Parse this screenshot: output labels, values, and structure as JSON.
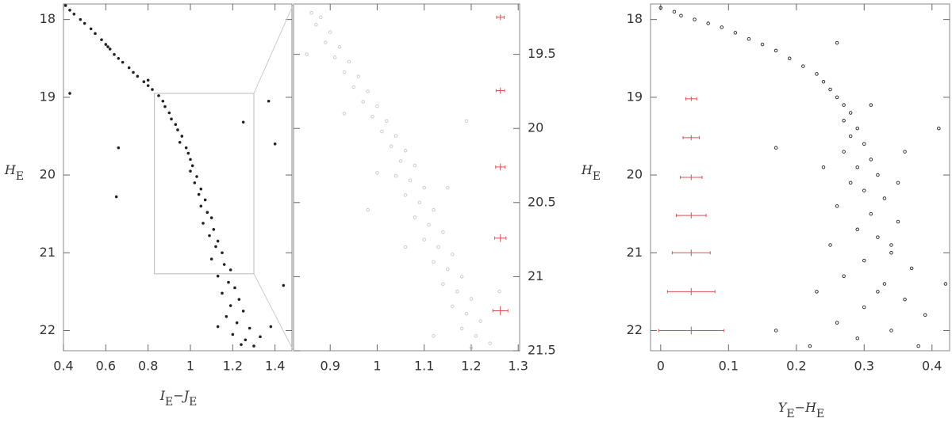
{
  "chart_data": [
    {
      "type": "scatter",
      "color": "#222",
      "marker": "filled",
      "yaxis_side": "left",
      "xlim": [
        0.4,
        1.48
      ],
      "ylim": [
        17.8,
        22.26
      ],
      "log_y": false,
      "y_reversed": true,
      "xticks": [
        0.4,
        0.6,
        0.8,
        1,
        1.2,
        1.4
      ],
      "yticks": [
        18,
        19,
        20,
        21,
        22
      ],
      "xlabel": [
        {
          "text": "I"
        },
        {
          "text": "E",
          "sub": true
        },
        {
          "text": "−J"
        },
        {
          "text": "E",
          "sub": true
        }
      ],
      "ylabel": [
        {
          "text": "H"
        },
        {
          "text": "E",
          "sub": true
        }
      ],
      "inset": {
        "xlim": [
          0.83,
          1.3
        ],
        "ylim": [
          18.95,
          21.27
        ]
      },
      "x": [
        0.41,
        0.43,
        0.45,
        0.48,
        0.5,
        0.53,
        0.55,
        0.58,
        0.6,
        0.62,
        0.64,
        0.66,
        0.68,
        0.71,
        0.73,
        0.75,
        0.78,
        0.8,
        0.82,
        0.85,
        0.87,
        0.88,
        0.9,
        0.91,
        0.93,
        0.94,
        0.96,
        0.95,
        0.98,
        0.99,
        1.0,
        1.01,
        1.0,
        1.03,
        1.02,
        1.05,
        1.04,
        1.07,
        1.05,
        1.08,
        1.1,
        1.06,
        1.11,
        1.09,
        1.13,
        1.12,
        1.15,
        1.1,
        1.16,
        1.19,
        1.13,
        1.18,
        1.21,
        1.15,
        1.23,
        1.19,
        1.25,
        1.17,
        1.22,
        1.28,
        1.2,
        1.26,
        1.3,
        1.24,
        1.33,
        1.38,
        0.43,
        0.66,
        0.65,
        0.8,
        1.4,
        1.25,
        1.44,
        1.13,
        0.61,
        1.37
      ],
      "values": [
        17.82,
        17.88,
        17.93,
        18.0,
        18.05,
        18.12,
        18.18,
        18.26,
        18.32,
        18.38,
        18.45,
        18.5,
        18.55,
        18.62,
        18.68,
        18.73,
        18.8,
        18.85,
        18.9,
        18.98,
        19.05,
        19.12,
        19.2,
        19.28,
        19.35,
        19.42,
        19.5,
        19.58,
        19.65,
        19.72,
        19.8,
        19.88,
        19.95,
        20.02,
        20.1,
        20.18,
        20.25,
        20.32,
        20.4,
        20.48,
        20.55,
        20.62,
        20.7,
        20.78,
        20.85,
        20.92,
        21.0,
        21.08,
        21.15,
        21.22,
        21.3,
        21.38,
        21.45,
        21.52,
        21.6,
        21.68,
        21.75,
        21.82,
        21.9,
        21.97,
        22.05,
        22.12,
        22.2,
        22.18,
        22.08,
        21.95,
        18.95,
        19.65,
        20.28,
        18.78,
        19.6,
        19.32,
        21.42,
        21.95,
        18.35,
        19.05
      ]
    },
    {
      "type": "scatter",
      "color": "#c8c8c8",
      "marker": "open",
      "yaxis_side": "right",
      "xlim": [
        0.822,
        1.303
      ],
      "ylim": [
        19.16,
        21.5
      ],
      "y_reversed": true,
      "xticks": [
        0.9,
        1,
        1.1,
        1.2,
        1.3
      ],
      "yticks": [
        19.5,
        20,
        20.5,
        21,
        21.5
      ],
      "x": [
        0.86,
        0.88,
        0.87,
        0.9,
        0.89,
        0.92,
        0.91,
        0.94,
        0.93,
        0.96,
        0.95,
        0.98,
        0.97,
        1.0,
        0.99,
        1.02,
        1.01,
        1.04,
        1.03,
        1.06,
        1.05,
        1.08,
        1.04,
        1.07,
        1.1,
        1.06,
        1.09,
        1.12,
        1.08,
        1.11,
        1.14,
        1.1,
        1.13,
        1.16,
        1.12,
        1.15,
        1.18,
        1.14,
        1.17,
        1.2,
        1.16,
        1.19,
        1.22,
        1.18,
        1.21,
        1.24,
        1.2,
        0.85,
        0.93,
        1.0,
        1.06,
        1.26,
        1.15,
        1.19,
        0.98,
        1.12
      ],
      "values": [
        19.22,
        19.25,
        19.3,
        19.35,
        19.42,
        19.45,
        19.52,
        19.55,
        19.62,
        19.65,
        19.72,
        19.75,
        19.82,
        19.85,
        19.92,
        19.95,
        20.02,
        20.05,
        20.12,
        20.15,
        20.22,
        20.25,
        20.32,
        20.35,
        20.4,
        20.45,
        20.5,
        20.55,
        20.6,
        20.65,
        20.7,
        20.75,
        20.8,
        20.85,
        20.9,
        20.95,
        21.0,
        21.05,
        21.1,
        21.15,
        21.2,
        21.25,
        21.3,
        21.35,
        21.4,
        21.45,
        21.48,
        19.5,
        19.9,
        20.3,
        20.8,
        21.1,
        20.4,
        19.95,
        20.55,
        21.4
      ],
      "errorbars": {
        "color": "#e05050",
        "x": [
          1.262,
          1.262,
          1.262,
          1.262,
          1.262
        ],
        "y": [
          19.25,
          19.745,
          20.26,
          20.74,
          21.23
        ],
        "xerr": [
          0.008,
          0.009,
          0.01,
          0.012,
          0.016
        ],
        "yerr": [
          0.008,
          0.01,
          0.012,
          0.015,
          0.02
        ]
      }
    },
    {
      "type": "scatter",
      "color": "#222",
      "marker": "open",
      "yaxis_side": "left",
      "xlim": [
        -0.015,
        0.426
      ],
      "ylim": [
        17.8,
        22.26
      ],
      "y_reversed": true,
      "xticks": [
        0,
        0.1,
        0.2,
        0.3,
        0.4
      ],
      "yticks": [
        18,
        19,
        20,
        21,
        22
      ],
      "xlabel": [
        {
          "text": "Y"
        },
        {
          "text": "E",
          "sub": true
        },
        {
          "text": "−H"
        },
        {
          "text": "E",
          "sub": true
        }
      ],
      "ylabel": [
        {
          "text": "H"
        },
        {
          "text": "E",
          "sub": true
        }
      ],
      "x": [
        0.0,
        0.02,
        0.03,
        0.05,
        0.07,
        0.09,
        0.11,
        0.13,
        0.15,
        0.17,
        0.19,
        0.21,
        0.23,
        0.24,
        0.25,
        0.26,
        0.27,
        0.28,
        0.27,
        0.29,
        0.28,
        0.3,
        0.27,
        0.31,
        0.29,
        0.32,
        0.28,
        0.3,
        0.33,
        0.26,
        0.31,
        0.35,
        0.29,
        0.32,
        0.25,
        0.34,
        0.3,
        0.37,
        0.27,
        0.33,
        0.23,
        0.36,
        0.3,
        0.39,
        0.26,
        0.34,
        0.29,
        0.38,
        0.22,
        0.32,
        0.35,
        0.24,
        0.41,
        0.42,
        0.17,
        0.26,
        0.17,
        0.31,
        0.36,
        0.34
      ],
      "values": [
        17.85,
        17.9,
        17.95,
        18.0,
        18.05,
        18.1,
        18.17,
        18.25,
        18.32,
        18.4,
        18.5,
        18.6,
        18.7,
        18.8,
        18.9,
        19.0,
        19.1,
        19.2,
        19.3,
        19.4,
        19.5,
        19.6,
        19.7,
        19.8,
        19.9,
        20.0,
        20.1,
        20.2,
        20.3,
        20.4,
        20.5,
        20.6,
        20.7,
        20.8,
        20.9,
        21.0,
        21.1,
        21.2,
        21.3,
        21.4,
        21.5,
        21.6,
        21.7,
        21.8,
        21.9,
        22.0,
        22.1,
        22.2,
        22.2,
        21.5,
        20.1,
        19.9,
        19.4,
        21.4,
        19.65,
        18.3,
        22.0,
        19.1,
        19.7,
        20.9
      ],
      "errorbars": {
        "color": "#e05050",
        "x": [
          0.045,
          0.045,
          0.045,
          0.045,
          0.045,
          0.045,
          0.045
        ],
        "y": [
          19.02,
          19.52,
          20.03,
          20.52,
          21.0,
          21.5,
          22.0
        ],
        "xerr": [
          0.008,
          0.012,
          0.016,
          0.022,
          0.028,
          0.035,
          0.048
        ],
        "yerr": [
          0.01,
          0.012,
          0.015,
          0.018,
          0.022,
          0.026,
          0.03
        ]
      }
    }
  ]
}
